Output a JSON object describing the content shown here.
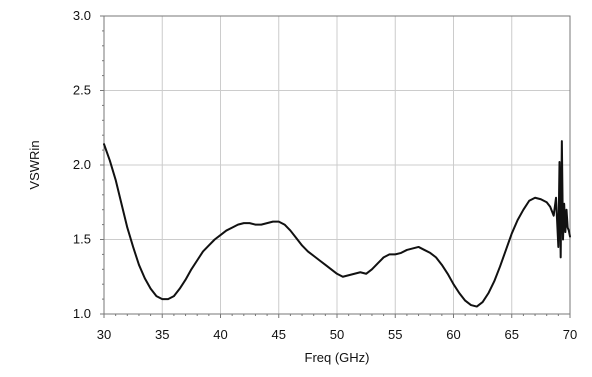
{
  "chart_data": {
    "type": "line",
    "title": "",
    "xlabel": "Freq (GHz)",
    "ylabel": "VSWRin",
    "xlim": [
      30,
      70
    ],
    "ylim": [
      1.0,
      3.0
    ],
    "xticks": [
      "30",
      "35",
      "40",
      "45",
      "50",
      "55",
      "60",
      "65",
      "70"
    ],
    "yticks": [
      "1.0",
      "1.5",
      "2.0",
      "2.5",
      "3.0"
    ],
    "grid": true,
    "legend": "none",
    "colors": {
      "line": "#111111",
      "grid": "#cccccc",
      "frame": "#777777"
    },
    "series": [
      {
        "x": [
          30.0,
          30.5,
          31.0,
          31.5,
          32.0,
          32.5,
          33.0,
          33.5,
          34.0,
          34.5,
          35.0,
          35.5,
          36.0,
          36.5,
          37.0,
          37.5,
          38.0,
          38.5,
          39.0,
          39.5,
          40.0,
          40.5,
          41.0,
          41.5,
          42.0,
          42.5,
          43.0,
          43.5,
          44.0,
          44.5,
          45.0,
          45.5,
          46.0,
          46.5,
          47.0,
          47.5,
          48.0,
          48.5,
          49.0,
          49.5,
          50.0,
          50.5,
          51.0,
          51.5,
          52.0,
          52.5,
          53.0,
          53.5,
          54.0,
          54.5,
          55.0,
          55.5,
          56.0,
          56.5,
          57.0,
          57.5,
          58.0,
          58.5,
          59.0,
          59.5,
          60.0,
          60.5,
          61.0,
          61.5,
          62.0,
          62.5,
          63.0,
          63.5,
          64.0,
          64.5,
          65.0,
          65.5,
          66.0,
          66.5,
          67.0,
          67.5,
          68.0,
          68.3,
          68.6,
          68.8,
          69.0,
          69.1,
          69.2,
          69.3,
          69.4,
          69.5,
          69.6,
          69.7,
          69.8,
          69.9,
          70.0
        ],
        "y": [
          2.14,
          2.03,
          1.9,
          1.74,
          1.58,
          1.45,
          1.33,
          1.24,
          1.17,
          1.12,
          1.1,
          1.1,
          1.12,
          1.17,
          1.23,
          1.3,
          1.36,
          1.42,
          1.46,
          1.5,
          1.53,
          1.56,
          1.58,
          1.6,
          1.61,
          1.61,
          1.6,
          1.6,
          1.61,
          1.62,
          1.62,
          1.6,
          1.56,
          1.51,
          1.46,
          1.42,
          1.39,
          1.36,
          1.33,
          1.3,
          1.27,
          1.25,
          1.26,
          1.27,
          1.28,
          1.27,
          1.3,
          1.34,
          1.38,
          1.4,
          1.4,
          1.41,
          1.43,
          1.44,
          1.45,
          1.43,
          1.41,
          1.38,
          1.33,
          1.27,
          1.2,
          1.14,
          1.09,
          1.06,
          1.05,
          1.08,
          1.14,
          1.22,
          1.32,
          1.43,
          1.54,
          1.63,
          1.7,
          1.76,
          1.78,
          1.77,
          1.75,
          1.72,
          1.66,
          1.78,
          1.45,
          2.02,
          1.38,
          2.16,
          1.5,
          1.74,
          1.55,
          1.7,
          1.58,
          1.56,
          1.52
        ]
      }
    ]
  }
}
